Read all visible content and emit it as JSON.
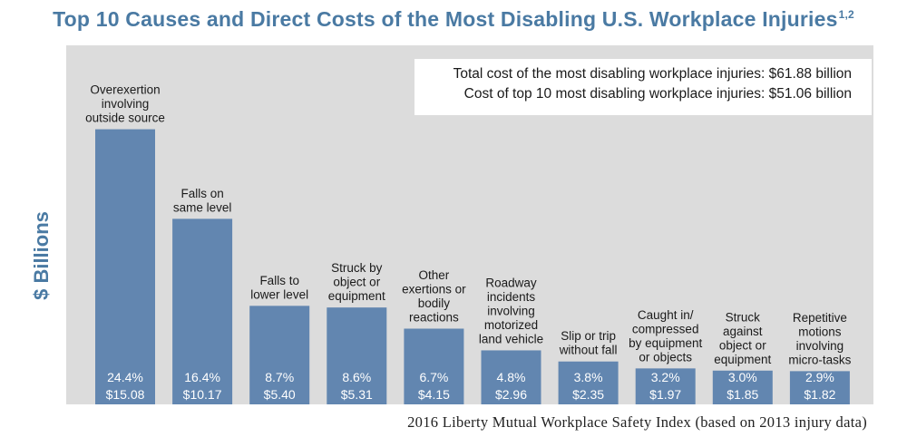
{
  "chart_data": {
    "type": "bar",
    "title": "Top 10 Causes and Direct Costs of the Most Disabling U.S. Workplace Injuries",
    "title_superscript": "1,2",
    "ylabel": "$ Billions",
    "ylim": [
      0,
      16.5
    ],
    "grid": false,
    "categories": [
      [
        "Overexertion",
        "involving",
        "outside source"
      ],
      [
        "Falls on",
        "same level"
      ],
      [
        "Falls to",
        "lower level"
      ],
      [
        "Struck by",
        "object or",
        "equipment"
      ],
      [
        "Other",
        "exertions or",
        "bodily",
        "reactions"
      ],
      [
        "Roadway",
        "incidents",
        "involving",
        "motorized",
        "land vehicle"
      ],
      [
        "Slip or trip",
        "without fall"
      ],
      [
        "Caught in/",
        "compressed",
        "by equipment",
        "or objects"
      ],
      [
        "Struck",
        "against",
        "object or",
        "equipment"
      ],
      [
        "Repetitive",
        "motions",
        "involving",
        "micro-tasks"
      ]
    ],
    "values": [
      15.08,
      10.17,
      5.4,
      5.31,
      4.15,
      2.96,
      2.35,
      1.97,
      1.85,
      1.82
    ],
    "percent_labels": [
      "24.4%",
      "16.4%",
      "8.7%",
      "8.6%",
      "6.7%",
      "4.8%",
      "3.8%",
      "3.2%",
      "3.0%",
      "2.9%"
    ],
    "value_labels": [
      "$15.08",
      "$10.17",
      "$5.40",
      "$5.31",
      "$4.15",
      "$2.96",
      "$2.35",
      "$1.97",
      "$1.85",
      "$1.82"
    ],
    "annotations": [
      "Total cost of the most disabling workplace injuries: $61.88 billion",
      "Cost of top 10 most disabling workplace injuries: $51.06 billion"
    ],
    "source": "2016 Liberty Mutual Workplace Safety Index (based on 2013 injury data)"
  },
  "colors": {
    "bar": "#6286b0",
    "panel": "#dcdcdc",
    "title": "#4a7aa3",
    "bar_label": "#ffffff",
    "category_label": "#1a1a1a"
  }
}
